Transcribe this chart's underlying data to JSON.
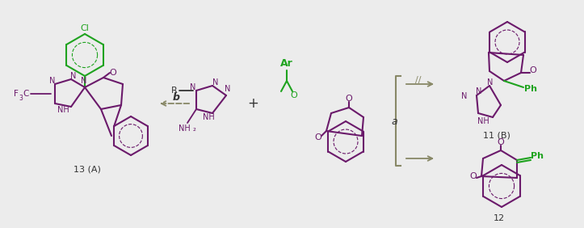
{
  "bg_color": "#ececec",
  "green_color": "#1fa31f",
  "purple_color": "#6b1a6b",
  "dark_color": "#333333",
  "arrow_color": "#888866",
  "label_13A": "13 (A)",
  "label_11B": "11 (B)",
  "label_12": "12",
  "label_a": "a",
  "label_b": "b"
}
